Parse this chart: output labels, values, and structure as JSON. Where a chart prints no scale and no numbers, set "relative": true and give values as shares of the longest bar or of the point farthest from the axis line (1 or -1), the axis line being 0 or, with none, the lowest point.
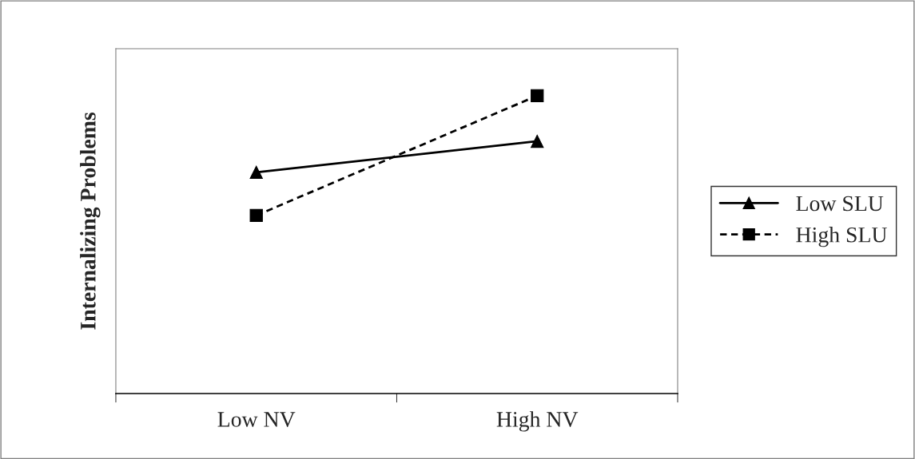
{
  "chart_data": {
    "type": "line",
    "ylabel": "Internalizing Problems",
    "categories": [
      "Low NV",
      "High NV"
    ],
    "relative": true,
    "legend": "right",
    "series": [
      {
        "name": "Low SLU",
        "color": "#000000",
        "marker": "triangle",
        "line_style": "solid",
        "values": [
          0.743,
          0.847
        ]
      },
      {
        "name": "High SLU",
        "color": "#000000",
        "marker": "square",
        "line_style": "dashed",
        "values": [
          0.598,
          1
        ]
      }
    ]
  }
}
